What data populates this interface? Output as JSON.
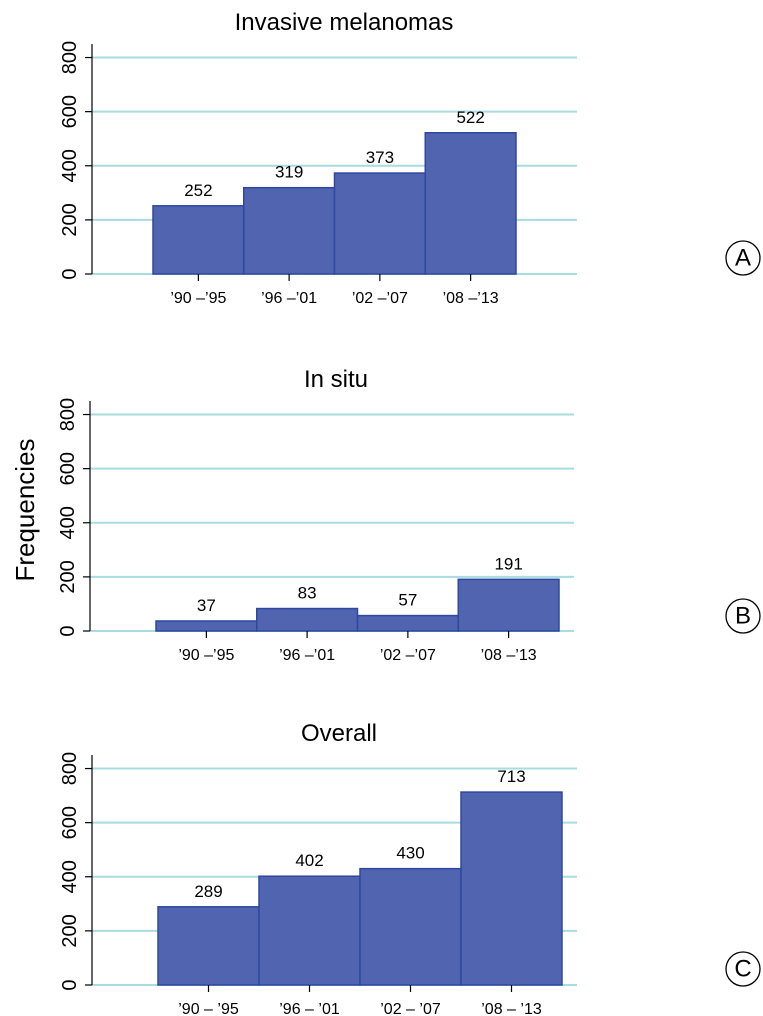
{
  "figure": {
    "ylabel": "Frequencies",
    "colors": {
      "bar_fill": "#5064b0",
      "bar_stroke": "#2e48a0",
      "grid": "#a8dce0",
      "axis": "#000000"
    },
    "panel_markers": [
      "A",
      "B",
      "C"
    ]
  },
  "chart_data": [
    {
      "type": "bar",
      "title": "Invasive melanomas",
      "categories": [
        "’90 –’95",
        "’96 –’01",
        "’02 –’07",
        "’08 –’13"
      ],
      "values": [
        252,
        319,
        373,
        522
      ],
      "data_labels": [
        "252",
        "319",
        "373",
        "522"
      ],
      "ylim": [
        0,
        850
      ],
      "yticks": [
        "0",
        "200",
        "400",
        "600",
        "800"
      ],
      "grid": true
    },
    {
      "type": "bar",
      "title": "In situ",
      "categories": [
        "’90 –’95",
        "’96 –’01",
        "’02 –’07",
        "’08 –’13"
      ],
      "values": [
        37,
        83,
        57,
        191
      ],
      "data_labels": [
        "37",
        "83",
        "57",
        "191"
      ],
      "ylim": [
        0,
        850
      ],
      "yticks": [
        "0",
        "200",
        "400",
        "600",
        "800"
      ],
      "grid": true
    },
    {
      "type": "bar",
      "title": "Overall",
      "categories": [
        "’90 – ’95",
        "’96 – ’01",
        "’02 – ’07",
        "’08 – ’13"
      ],
      "values": [
        289,
        402,
        430,
        713
      ],
      "data_labels": [
        "289",
        "402",
        "430",
        "713"
      ],
      "ylim": [
        0,
        850
      ],
      "yticks": [
        "0",
        "200",
        "400",
        "600",
        "800"
      ],
      "grid": true
    }
  ]
}
